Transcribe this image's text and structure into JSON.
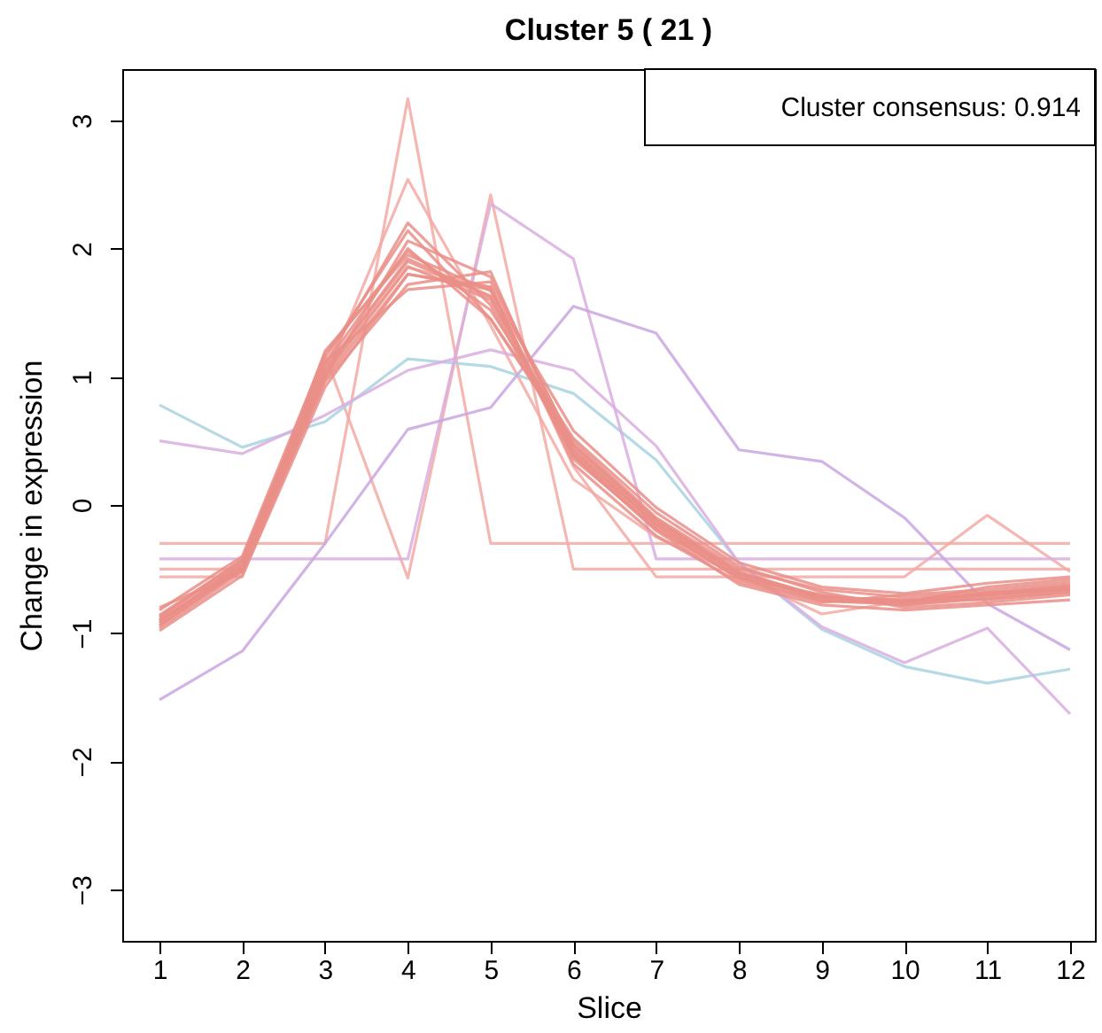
{
  "chart_data": {
    "type": "line",
    "title": "Cluster 5 ( 21 )",
    "xlabel": "Slice",
    "ylabel": "Change in expression",
    "annotations": [
      "Cluster consensus:  0.914"
    ],
    "x": [
      1,
      2,
      3,
      4,
      5,
      6,
      7,
      8,
      9,
      10,
      11,
      12
    ],
    "xlim": [
      0.55,
      12.3
    ],
    "xticks": [
      1,
      2,
      3,
      4,
      5,
      6,
      7,
      8,
      9,
      10,
      11,
      12
    ],
    "ylim": [
      -3.4,
      3.4
    ],
    "yticks": [
      -3,
      -2,
      -1,
      0,
      1,
      2,
      3
    ],
    "grid": false,
    "legend": false,
    "series": [
      {
        "color": "#f2aaa4",
        "values": [
          -0.3,
          -0.3,
          -0.3,
          3.17,
          -0.3,
          -0.3,
          -0.3,
          -0.3,
          -0.3,
          -0.3,
          -0.3,
          -0.3
        ]
      },
      {
        "color": "#f2aaa4",
        "values": [
          -0.5,
          -0.5,
          1.17,
          -0.57,
          2.42,
          -0.5,
          -0.5,
          -0.5,
          -0.5,
          -0.5,
          -0.5,
          -0.5
        ]
      },
      {
        "color": "#f2aaa4",
        "values": [
          -0.56,
          -0.56,
          1.0,
          1.85,
          1.7,
          0.3,
          -0.56,
          -0.56,
          -0.56,
          -0.56,
          -0.08,
          -0.52
        ]
      },
      {
        "color": "#f2aaa4",
        "values": [
          -0.92,
          -0.5,
          1.0,
          2.54,
          1.4,
          0.2,
          -0.25,
          -0.55,
          -0.85,
          -0.75,
          -0.68,
          -0.66
        ]
      },
      {
        "color": "#a8d4e2",
        "values": [
          0.78,
          0.45,
          0.65,
          1.14,
          1.08,
          0.87,
          0.35,
          -0.45,
          -0.97,
          -1.26,
          -1.39,
          -1.28
        ]
      },
      {
        "color": "#d9aee0",
        "values": [
          -0.42,
          -0.42,
          -0.42,
          -0.42,
          2.35,
          1.92,
          -0.42,
          -0.42,
          -0.42,
          -0.42,
          -0.42,
          -0.42
        ]
      },
      {
        "color": "#d9aee0",
        "values": [
          0.5,
          0.4,
          0.7,
          1.05,
          1.21,
          1.05,
          0.46,
          -0.45,
          -0.95,
          -1.23,
          -0.96,
          -1.63
        ]
      },
      {
        "color": "#caa6e0",
        "values": [
          -1.52,
          -1.14,
          -0.3,
          0.59,
          0.76,
          1.55,
          1.34,
          0.43,
          0.34,
          -0.1,
          -0.77,
          -1.13
        ]
      },
      {
        "color": "#ea8f88",
        "values": [
          -0.9,
          -0.47,
          1.05,
          1.9,
          1.62,
          0.42,
          -0.15,
          -0.55,
          -0.72,
          -0.75,
          -0.7,
          -0.65
        ]
      },
      {
        "color": "#ea8f88",
        "values": [
          -0.82,
          -0.4,
          1.18,
          1.98,
          1.52,
          0.52,
          -0.06,
          -0.48,
          -0.68,
          -0.8,
          -0.76,
          -0.7
        ]
      },
      {
        "color": "#ea8f88",
        "values": [
          -0.98,
          -0.55,
          0.92,
          1.8,
          1.7,
          0.32,
          -0.24,
          -0.6,
          -0.76,
          -0.7,
          -0.66,
          -0.6
        ]
      },
      {
        "color": "#ea8f88",
        "values": [
          -0.94,
          -0.5,
          1.1,
          2.2,
          1.56,
          0.38,
          -0.2,
          -0.62,
          -0.78,
          -0.82,
          -0.78,
          -0.74
        ]
      },
      {
        "color": "#ea8f88",
        "values": [
          -0.86,
          -0.43,
          1.15,
          2.14,
          1.45,
          0.5,
          -0.1,
          -0.5,
          -0.66,
          -0.72,
          -0.68,
          -0.62
        ]
      },
      {
        "color": "#ea8f88",
        "values": [
          -0.92,
          -0.45,
          1.0,
          2.06,
          1.78,
          0.45,
          -0.13,
          -0.53,
          -0.74,
          -0.76,
          -0.64,
          -0.58
        ]
      },
      {
        "color": "#ea8f88",
        "values": [
          -0.96,
          -0.52,
          0.96,
          1.72,
          1.82,
          0.36,
          -0.18,
          -0.57,
          -0.7,
          -0.78,
          -0.72,
          -0.66
        ]
      },
      {
        "color": "#ea8f88",
        "values": [
          -0.88,
          -0.42,
          1.12,
          1.68,
          1.74,
          0.47,
          -0.12,
          -0.52,
          -0.72,
          -0.74,
          -0.74,
          -0.68
        ]
      },
      {
        "color": "#ea8f88",
        "values": [
          -0.9,
          -0.48,
          1.02,
          1.86,
          1.6,
          0.4,
          -0.16,
          -0.58,
          -0.75,
          -0.77,
          -0.7,
          -0.66
        ]
      },
      {
        "color": "#ea8f88",
        "values": [
          -0.94,
          -0.49,
          1.06,
          1.92,
          1.63,
          0.43,
          -0.15,
          -0.54,
          -0.72,
          -0.74,
          -0.7,
          -0.64
        ]
      },
      {
        "color": "#ea8f88",
        "values": [
          -0.87,
          -0.45,
          1.09,
          2.0,
          1.45,
          0.47,
          -0.11,
          -0.53,
          -0.71,
          -0.76,
          -0.69,
          -0.63
        ]
      },
      {
        "color": "#ea8f88",
        "values": [
          -0.9,
          -0.5,
          0.98,
          1.8,
          1.68,
          0.39,
          -0.19,
          -0.57,
          -0.74,
          -0.78,
          -0.73,
          -0.68
        ]
      },
      {
        "color": "#ea8f88",
        "values": [
          -0.8,
          -0.52,
          1.2,
          1.95,
          1.67,
          0.58,
          -0.02,
          -0.45,
          -0.64,
          -0.69,
          -0.61,
          -0.56
        ]
      }
    ]
  }
}
